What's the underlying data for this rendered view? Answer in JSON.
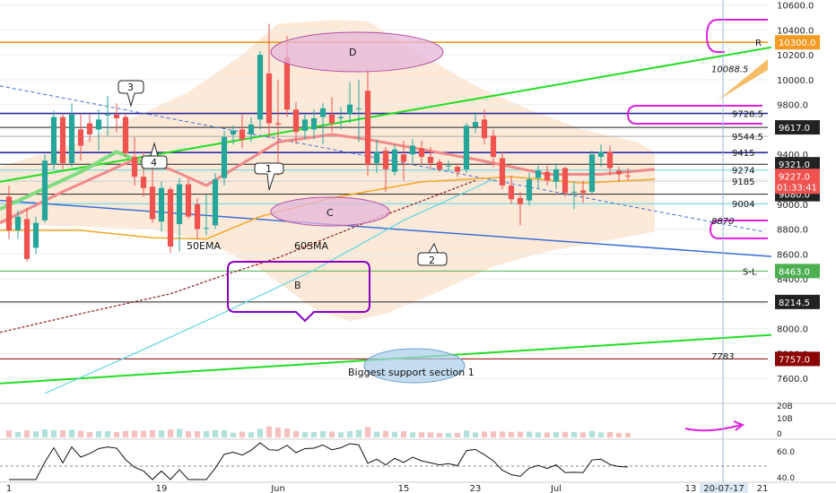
{
  "chart_data": {
    "type": "candlestick",
    "colors": {
      "up": "#26a69a",
      "down": "#ef5350",
      "ema50": "#f5a623",
      "sma60_a": "#8b1a1a",
      "sma60_b": "#5bd6e0",
      "trend_green": "#22dd22",
      "blue_line": "#3b6fd4",
      "navy_line": "#2c2c9e",
      "orange_line": "#f59a23",
      "magenta": "#e020e0",
      "cloud": "#fbe0c8"
    },
    "y_axis": {
      "ylim": [
        7400,
        10640
      ],
      "ticks": [
        "10600.0",
        "10400.0",
        "10200.0",
        "10000.0",
        "9800.0",
        "9600.0",
        "9400.0",
        "9200.0",
        "9000.0",
        "8800.0",
        "8600.0",
        "8400.0",
        "8200.0",
        "8000.0",
        "7800.0",
        "7600.0"
      ]
    },
    "x_axis": {
      "ticks": [
        {
          "label": "1",
          "index": 0
        },
        {
          "label": "19",
          "index": 17
        },
        {
          "label": "Jun",
          "index": 30
        },
        {
          "label": "15",
          "index": 44
        },
        {
          "label": "23",
          "index": 52
        },
        {
          "label": "Jul",
          "index": 61
        },
        {
          "label": "13",
          "index": 76
        },
        {
          "label": "21",
          "index": 84
        }
      ],
      "date_badge": "20-07-17"
    },
    "candles": [
      [
        9060,
        9150,
        8720,
        8790
      ],
      [
        8790,
        8950,
        8720,
        8900
      ],
      [
        8880,
        8970,
        8540,
        8560
      ],
      [
        8650,
        8900,
        8600,
        8850
      ],
      [
        8870,
        9400,
        8850,
        9350
      ],
      [
        9320,
        9750,
        9280,
        9700
      ],
      [
        9700,
        9720,
        9280,
        9330
      ],
      [
        9330,
        9810,
        9300,
        9720
      ],
      [
        9600,
        9720,
        9350,
        9470
      ],
      [
        9650,
        9720,
        9500,
        9560
      ],
      [
        9600,
        9760,
        9430,
        9680
      ],
      [
        9720,
        9870,
        9550,
        9720
      ],
      [
        9720,
        9810,
        9580,
        9690
      ],
      [
        9700,
        9730,
        9380,
        9410
      ],
      [
        9380,
        9540,
        9150,
        9220
      ],
      [
        9220,
        9420,
        9060,
        9130
      ],
      [
        9140,
        9310,
        8850,
        8880
      ],
      [
        8860,
        9180,
        8780,
        9130
      ],
      [
        9120,
        9140,
        8610,
        8660
      ],
      [
        8840,
        9210,
        8620,
        9160
      ],
      [
        9160,
        9210,
        8880,
        8900
      ],
      [
        9000,
        9050,
        8720,
        8800
      ],
      [
        8810,
        9080,
        8750,
        8810
      ],
      [
        8830,
        9250,
        8800,
        9200
      ],
      [
        9210,
        9590,
        9150,
        9540
      ],
      [
        9560,
        9630,
        9480,
        9590
      ],
      [
        9600,
        9720,
        9450,
        9520
      ],
      [
        9560,
        9700,
        9500,
        9640
      ],
      [
        9680,
        10230,
        9600,
        10200
      ],
      [
        10050,
        10450,
        9530,
        9650
      ],
      [
        9650,
        10000,
        9230,
        9640
      ],
      [
        10180,
        10350,
        9700,
        9760
      ],
      [
        9760,
        9820,
        9480,
        9580
      ],
      [
        9590,
        9720,
        9520,
        9680
      ],
      [
        9600,
        9760,
        9520,
        9690
      ],
      [
        9700,
        9810,
        9480,
        9770
      ],
      [
        9720,
        9860,
        9580,
        9650
      ],
      [
        9690,
        9780,
        9600,
        9700
      ],
      [
        9720,
        9980,
        9650,
        9800
      ],
      [
        9770,
        10000,
        9500,
        9770
      ],
      [
        9910,
        10080,
        9230,
        9320
      ],
      [
        9330,
        9520,
        9250,
        9420
      ],
      [
        9430,
        9460,
        9100,
        9280
      ],
      [
        9260,
        9480,
        9230,
        9440
      ],
      [
        9400,
        9510,
        9190,
        9340
      ],
      [
        9400,
        9520,
        9330,
        9470
      ],
      [
        9450,
        9510,
        9320,
        9380
      ],
      [
        9380,
        9460,
        9280,
        9330
      ],
      [
        9340,
        9360,
        9260,
        9280
      ],
      [
        9310,
        9350,
        9260,
        9310
      ],
      [
        9300,
        9330,
        9220,
        9260
      ],
      [
        9280,
        9650,
        9250,
        9630
      ],
      [
        9620,
        9740,
        9570,
        9660
      ],
      [
        9680,
        9760,
        9480,
        9530
      ],
      [
        9550,
        9600,
        9300,
        9380
      ],
      [
        9370,
        9420,
        9120,
        9150
      ],
      [
        9150,
        9230,
        9000,
        9040
      ],
      [
        9050,
        9100,
        8830,
        9000
      ],
      [
        9030,
        9250,
        8990,
        9200
      ],
      [
        9210,
        9310,
        9120,
        9270
      ],
      [
        9260,
        9310,
        9150,
        9190
      ],
      [
        9180,
        9330,
        9120,
        9280
      ],
      [
        9290,
        9300,
        9060,
        9090
      ],
      [
        9100,
        9180,
        8960,
        9100
      ],
      [
        9110,
        9190,
        9010,
        9090
      ],
      [
        9100,
        9430,
        9080,
        9400
      ],
      [
        9380,
        9480,
        9300,
        9420
      ],
      [
        9420,
        9470,
        9230,
        9290
      ],
      [
        9270,
        9300,
        9180,
        9240
      ],
      [
        9230,
        9290,
        9190,
        9227
      ]
    ],
    "x_index_range": [
      -1,
      85
    ],
    "horizontal_levels": [
      {
        "value": 10300.0,
        "label": "10300.0",
        "box": true,
        "color": "#f59a23"
      },
      {
        "value": 9728.5,
        "label": "9728.5",
        "box": false,
        "color": "#2c2c9e"
      },
      {
        "value": 9617.0,
        "label": "9617.0",
        "box": true,
        "color": "#222222"
      },
      {
        "value": 9544.5,
        "label": "9544.5",
        "box": false,
        "color": "#aaaaaa"
      },
      {
        "value": 9415.0,
        "label": "9415",
        "box": false,
        "color": "#2c2c9e"
      },
      {
        "value": 9321.0,
        "label": "9321.0",
        "box": true,
        "color": "#222222"
      },
      {
        "value": 9274.0,
        "label": "9274",
        "box": false,
        "color": "#5bd6e0"
      },
      {
        "value": 9185.0,
        "label": "9185",
        "box": false,
        "color": "#cccccc"
      },
      {
        "value": 9080.0,
        "label": "9080.0",
        "box": true,
        "color": "#222222"
      },
      {
        "value": 9004.0,
        "label": "9004",
        "box": false,
        "color": "#5bd6e0"
      },
      {
        "value": 8463.0,
        "label": "8463.0",
        "box": true,
        "color": "#4caf50"
      },
      {
        "value": 8214.5,
        "label": "8214.5",
        "box": true,
        "color": "#222222"
      },
      {
        "value": 7757.0,
        "label": "7757.0",
        "box": true,
        "color": "#8b0000"
      }
    ],
    "price_labels_floating": [
      {
        "value": 10088.5,
        "label": "10088.5"
      },
      {
        "value": 8870,
        "label": "8870"
      },
      {
        "value": 7783,
        "label": "7783"
      }
    ],
    "current_price": {
      "value": 9227.0,
      "label": "9227.0",
      "countdown": "01:33:41"
    },
    "annotations": {
      "r_label": "R",
      "sl_label": "S-L",
      "ema_label": "50EMA",
      "sma_label": "60SMA",
      "ellipse_D": "D",
      "ellipse_C": "C",
      "box_B": "B",
      "wave_1": "1",
      "wave_2": "2",
      "wave_3": "3",
      "wave_4": "4",
      "support_text": "Biggest support section 1"
    },
    "volume_panel": {
      "ticks": [
        "20B",
        "10B",
        "0"
      ]
    },
    "oscillator_panel": {
      "ticks": [
        "60.0",
        "40.0"
      ]
    }
  }
}
